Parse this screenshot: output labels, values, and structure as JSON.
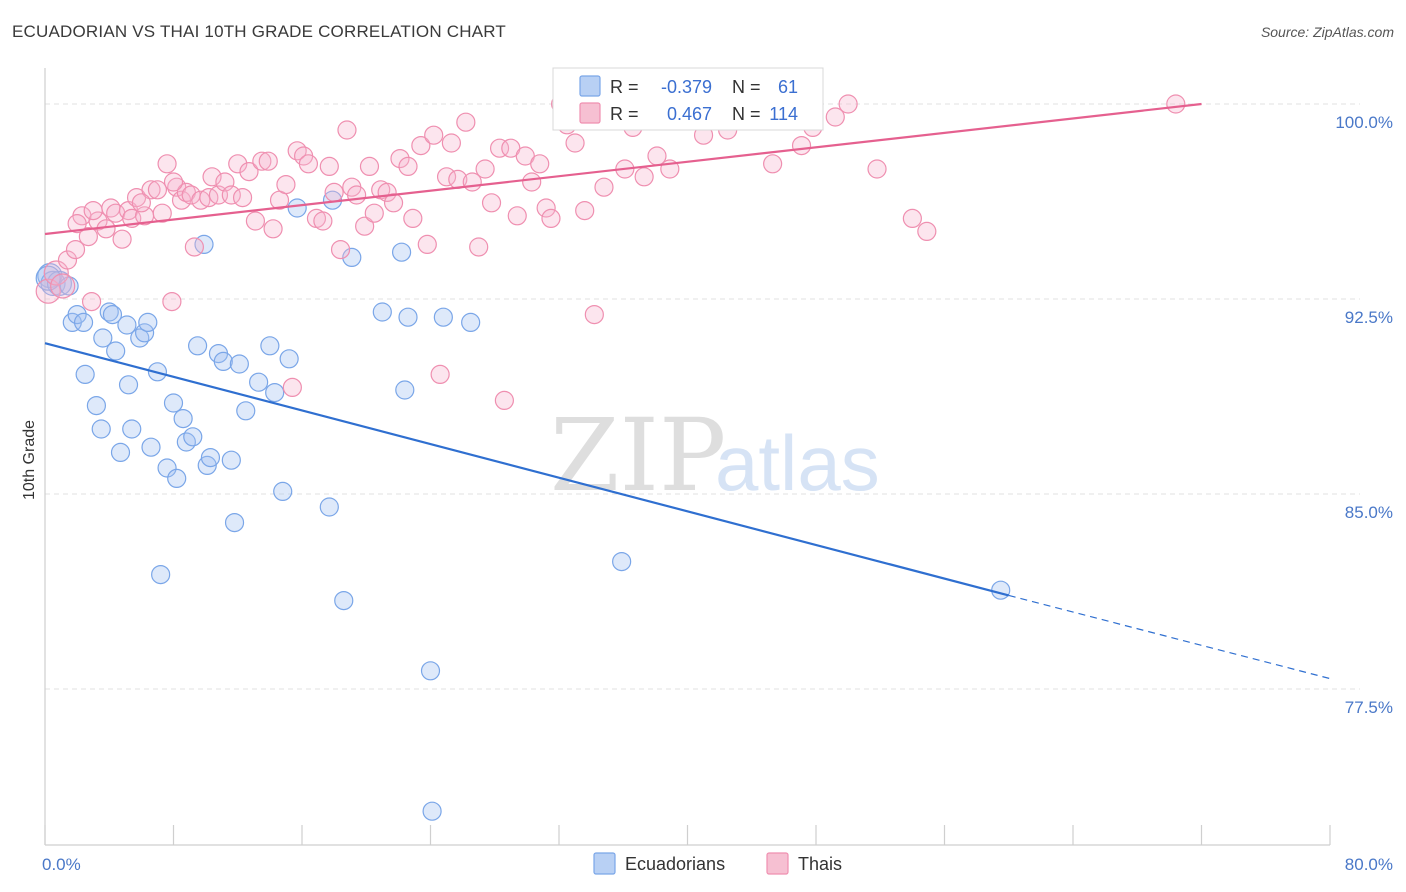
{
  "header": {
    "title": "ECUADORIAN VS THAI 10TH GRADE CORRELATION CHART",
    "source": "Source: ZipAtlas.com"
  },
  "watermark": {
    "zip": "ZIP",
    "atlas": "atlas"
  },
  "chart_data": {
    "type": "scatter",
    "ylabel": "10th Grade",
    "xlim": [
      0,
      80
    ],
    "ylim": [
      71.5,
      101
    ],
    "x_tick_labels": [
      "0.0%",
      "80.0%"
    ],
    "x_tick_positions": [
      0,
      80
    ],
    "y_ticks": [
      {
        "value": 100.0,
        "label": "100.0%"
      },
      {
        "value": 92.5,
        "label": "92.5%"
      },
      {
        "value": 85.0,
        "label": "85.0%"
      },
      {
        "value": 77.5,
        "label": "77.5%"
      }
    ],
    "stats_legend": [
      {
        "r_label": "R =",
        "r_value": "-0.379",
        "n_label": "N =",
        "n_value": "61",
        "color": "#7aa6e8",
        "fill": "#b8d0f4"
      },
      {
        "r_label": "R =",
        "r_value": "0.467",
        "n_label": "N =",
        "n_value": "114",
        "color": "#ef8fb0",
        "fill": "#f6c0d2"
      }
    ],
    "series": [
      {
        "name": "Ecuadorians",
        "color": "#7aa6e8",
        "fill": "rgba(160,192,240,0.35)",
        "line_color": "#2f6fd0",
        "trend": {
          "x0": 0,
          "y0": 90.8,
          "x1": 60,
          "y1": 81.1,
          "dash_to_x": 80,
          "dash_to_y": 77.9
        },
        "points": [
          [
            0.3,
            93.4
          ],
          [
            0.5,
            93.1
          ],
          [
            0.9,
            93.1
          ],
          [
            1.5,
            93.0
          ],
          [
            1.7,
            91.6
          ],
          [
            2.0,
            91.9
          ],
          [
            2.4,
            91.6
          ],
          [
            2.5,
            89.6
          ],
          [
            3.2,
            88.4
          ],
          [
            3.5,
            87.5
          ],
          [
            3.6,
            91.0
          ],
          [
            4.0,
            92.0
          ],
          [
            4.2,
            91.9
          ],
          [
            4.4,
            90.5
          ],
          [
            4.7,
            86.6
          ],
          [
            5.1,
            91.5
          ],
          [
            5.2,
            89.2
          ],
          [
            5.4,
            87.5
          ],
          [
            5.9,
            91.0
          ],
          [
            6.2,
            91.2
          ],
          [
            6.4,
            91.6
          ],
          [
            6.6,
            86.8
          ],
          [
            7.0,
            89.7
          ],
          [
            7.2,
            81.9
          ],
          [
            7.6,
            86.0
          ],
          [
            8.0,
            88.5
          ],
          [
            8.2,
            85.6
          ],
          [
            8.6,
            87.9
          ],
          [
            8.8,
            87.0
          ],
          [
            9.2,
            87.2
          ],
          [
            9.5,
            90.7
          ],
          [
            9.9,
            94.6
          ],
          [
            10.1,
            86.1
          ],
          [
            10.3,
            86.4
          ],
          [
            10.8,
            90.4
          ],
          [
            11.1,
            90.1
          ],
          [
            11.6,
            86.3
          ],
          [
            11.8,
            83.9
          ],
          [
            12.1,
            90.0
          ],
          [
            12.5,
            88.2
          ],
          [
            13.3,
            89.3
          ],
          [
            14.0,
            90.7
          ],
          [
            14.3,
            88.9
          ],
          [
            14.8,
            85.1
          ],
          [
            15.2,
            90.2
          ],
          [
            15.7,
            96.0
          ],
          [
            17.7,
            84.5
          ],
          [
            17.9,
            96.3
          ],
          [
            18.6,
            80.9
          ],
          [
            19.1,
            94.1
          ],
          [
            21.0,
            92.0
          ],
          [
            22.2,
            94.3
          ],
          [
            22.6,
            91.8
          ],
          [
            22.4,
            89.0
          ],
          [
            24.0,
            78.2
          ],
          [
            24.8,
            91.8
          ],
          [
            26.5,
            91.6
          ],
          [
            24.1,
            72.8
          ],
          [
            35.9,
            82.4
          ],
          [
            59.5,
            81.3
          ],
          [
            0.2,
            93.3
          ]
        ]
      },
      {
        "name": "Thais",
        "color": "#ef8fb0",
        "fill": "rgba(245,180,205,0.35)",
        "line_color": "#e5608f",
        "trend": {
          "x0": 0,
          "y0": 95.0,
          "x1": 72,
          "y1": 100.0
        },
        "points": [
          [
            0.2,
            92.8
          ],
          [
            0.7,
            93.5
          ],
          [
            1.4,
            94.0
          ],
          [
            1.9,
            94.4
          ],
          [
            2.3,
            95.7
          ],
          [
            2.7,
            94.9
          ],
          [
            2.9,
            92.4
          ],
          [
            3.3,
            95.5
          ],
          [
            3.8,
            95.2
          ],
          [
            4.1,
            96.0
          ],
          [
            4.4,
            95.8
          ],
          [
            4.8,
            94.8
          ],
          [
            5.2,
            95.9
          ],
          [
            5.4,
            95.6
          ],
          [
            5.7,
            96.4
          ],
          [
            6.2,
            95.7
          ],
          [
            6.6,
            96.7
          ],
          [
            7.0,
            96.7
          ],
          [
            7.3,
            95.8
          ],
          [
            7.6,
            97.7
          ],
          [
            7.9,
            92.4
          ],
          [
            8.2,
            96.8
          ],
          [
            8.5,
            96.3
          ],
          [
            8.8,
            96.6
          ],
          [
            9.1,
            96.5
          ],
          [
            9.3,
            94.5
          ],
          [
            9.7,
            96.3
          ],
          [
            10.2,
            96.4
          ],
          [
            10.4,
            97.2
          ],
          [
            10.8,
            96.5
          ],
          [
            11.2,
            97.0
          ],
          [
            11.6,
            96.5
          ],
          [
            12.0,
            97.7
          ],
          [
            12.3,
            96.4
          ],
          [
            12.7,
            97.4
          ],
          [
            13.1,
            95.5
          ],
          [
            13.5,
            97.8
          ],
          [
            13.9,
            97.8
          ],
          [
            14.2,
            95.2
          ],
          [
            14.6,
            96.3
          ],
          [
            15.0,
            96.9
          ],
          [
            15.4,
            89.1
          ],
          [
            15.7,
            98.2
          ],
          [
            16.1,
            98.0
          ],
          [
            16.4,
            97.7
          ],
          [
            16.9,
            95.6
          ],
          [
            17.3,
            95.5
          ],
          [
            17.7,
            97.6
          ],
          [
            18.0,
            96.6
          ],
          [
            18.4,
            94.4
          ],
          [
            18.8,
            99.0
          ],
          [
            19.1,
            96.8
          ],
          [
            19.4,
            96.5
          ],
          [
            19.9,
            95.3
          ],
          [
            20.2,
            97.6
          ],
          [
            20.5,
            95.8
          ],
          [
            20.9,
            96.7
          ],
          [
            21.3,
            96.6
          ],
          [
            21.7,
            96.2
          ],
          [
            22.1,
            97.9
          ],
          [
            22.6,
            97.6
          ],
          [
            22.9,
            95.6
          ],
          [
            23.4,
            98.4
          ],
          [
            23.8,
            94.6
          ],
          [
            24.2,
            98.8
          ],
          [
            24.6,
            89.6
          ],
          [
            25.0,
            97.2
          ],
          [
            25.3,
            98.5
          ],
          [
            25.7,
            97.1
          ],
          [
            26.2,
            99.3
          ],
          [
            26.6,
            97.0
          ],
          [
            27.0,
            94.5
          ],
          [
            27.4,
            97.5
          ],
          [
            27.8,
            96.2
          ],
          [
            28.3,
            98.3
          ],
          [
            28.6,
            88.6
          ],
          [
            29.0,
            98.3
          ],
          [
            29.4,
            95.7
          ],
          [
            29.9,
            98.0
          ],
          [
            30.3,
            97.0
          ],
          [
            30.8,
            97.7
          ],
          [
            31.2,
            96.0
          ],
          [
            31.5,
            95.6
          ],
          [
            32.1,
            100.0
          ],
          [
            32.5,
            99.2
          ],
          [
            33.0,
            98.5
          ],
          [
            33.6,
            95.9
          ],
          [
            34.2,
            91.9
          ],
          [
            34.8,
            96.8
          ],
          [
            35.4,
            99.6
          ],
          [
            36.1,
            97.5
          ],
          [
            36.6,
            99.1
          ],
          [
            37.3,
            97.2
          ],
          [
            38.1,
            98.0
          ],
          [
            38.9,
            97.5
          ],
          [
            39.4,
            99.9
          ],
          [
            40.2,
            100.0
          ],
          [
            41.0,
            98.8
          ],
          [
            42.5,
            99.0
          ],
          [
            44.0,
            99.6
          ],
          [
            45.3,
            97.7
          ],
          [
            47.1,
            98.4
          ],
          [
            47.8,
            99.1
          ],
          [
            49.2,
            99.5
          ],
          [
            50.0,
            100.0
          ],
          [
            51.8,
            97.5
          ],
          [
            54.0,
            95.6
          ],
          [
            54.9,
            95.1
          ],
          [
            70.4,
            100.0
          ],
          [
            1.1,
            93.0
          ],
          [
            2.0,
            95.4
          ],
          [
            3.0,
            95.9
          ],
          [
            6.0,
            96.2
          ],
          [
            8.0,
            97.0
          ]
        ]
      }
    ]
  }
}
